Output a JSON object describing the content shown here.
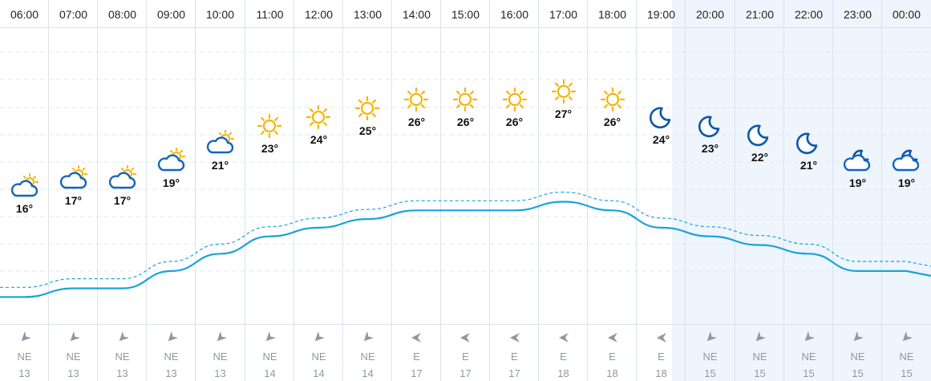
{
  "colors": {
    "line": "#1ba3d8",
    "sun": "#f5b400",
    "cloud": "#1565c0",
    "moon": "#0d57a7",
    "night_bg": "#eef5fc",
    "grid": "#d9e3ee",
    "wind_text": "#8e99a4"
  },
  "hours": [
    {
      "time": "06:00",
      "temp": "16°",
      "temp_value": 16,
      "icon": "partly-cloudy-sun-icon",
      "wind_dir": "NE",
      "wind_speed": "13",
      "night": false
    },
    {
      "time": "07:00",
      "temp": "17°",
      "temp_value": 17,
      "icon": "partly-cloudy-sun-icon",
      "wind_dir": "NE",
      "wind_speed": "13",
      "night": false
    },
    {
      "time": "08:00",
      "temp": "17°",
      "temp_value": 17,
      "icon": "partly-cloudy-sun-icon",
      "wind_dir": "NE",
      "wind_speed": "13",
      "night": false
    },
    {
      "time": "09:00",
      "temp": "19°",
      "temp_value": 19,
      "icon": "partly-cloudy-sun-icon",
      "wind_dir": "NE",
      "wind_speed": "13",
      "night": false
    },
    {
      "time": "10:00",
      "temp": "21°",
      "temp_value": 21,
      "icon": "partly-cloudy-sun-icon",
      "wind_dir": "NE",
      "wind_speed": "13",
      "night": false
    },
    {
      "time": "11:00",
      "temp": "23°",
      "temp_value": 23,
      "icon": "sun-icon",
      "wind_dir": "NE",
      "wind_speed": "14",
      "night": false
    },
    {
      "time": "12:00",
      "temp": "24°",
      "temp_value": 24,
      "icon": "sun-icon",
      "wind_dir": "NE",
      "wind_speed": "14",
      "night": false
    },
    {
      "time": "13:00",
      "temp": "25°",
      "temp_value": 25,
      "icon": "sun-icon",
      "wind_dir": "NE",
      "wind_speed": "14",
      "night": false
    },
    {
      "time": "14:00",
      "temp": "26°",
      "temp_value": 26,
      "icon": "sun-icon",
      "wind_dir": "E",
      "wind_speed": "17",
      "night": false
    },
    {
      "time": "15:00",
      "temp": "26°",
      "temp_value": 26,
      "icon": "sun-icon",
      "wind_dir": "E",
      "wind_speed": "17",
      "night": false
    },
    {
      "time": "16:00",
      "temp": "26°",
      "temp_value": 26,
      "icon": "sun-icon",
      "wind_dir": "E",
      "wind_speed": "17",
      "night": false
    },
    {
      "time": "17:00",
      "temp": "27°",
      "temp_value": 27,
      "icon": "sun-icon",
      "wind_dir": "E",
      "wind_speed": "18",
      "night": false
    },
    {
      "time": "18:00",
      "temp": "26°",
      "temp_value": 26,
      "icon": "sun-icon",
      "wind_dir": "E",
      "wind_speed": "18",
      "night": false
    },
    {
      "time": "19:00",
      "temp": "24°",
      "temp_value": 24,
      "icon": "moon-icon",
      "wind_dir": "E",
      "wind_speed": "18",
      "night": false
    },
    {
      "time": "20:00",
      "temp": "23°",
      "temp_value": 23,
      "icon": "moon-icon",
      "wind_dir": "NE",
      "wind_speed": "15",
      "night": true
    },
    {
      "time": "21:00",
      "temp": "22°",
      "temp_value": 22,
      "icon": "moon-icon",
      "wind_dir": "NE",
      "wind_speed": "15",
      "night": true
    },
    {
      "time": "22:00",
      "temp": "21°",
      "temp_value": 21,
      "icon": "moon-icon",
      "wind_dir": "NE",
      "wind_speed": "15",
      "night": true
    },
    {
      "time": "23:00",
      "temp": "19°",
      "temp_value": 19,
      "icon": "partly-cloudy-moon-icon",
      "wind_dir": "NE",
      "wind_speed": "15",
      "night": true
    },
    {
      "time": "00:00",
      "temp": "19°",
      "temp_value": 19,
      "icon": "partly-cloudy-moon-icon",
      "wind_dir": "NE",
      "wind_speed": "15",
      "night": true
    }
  ]
}
